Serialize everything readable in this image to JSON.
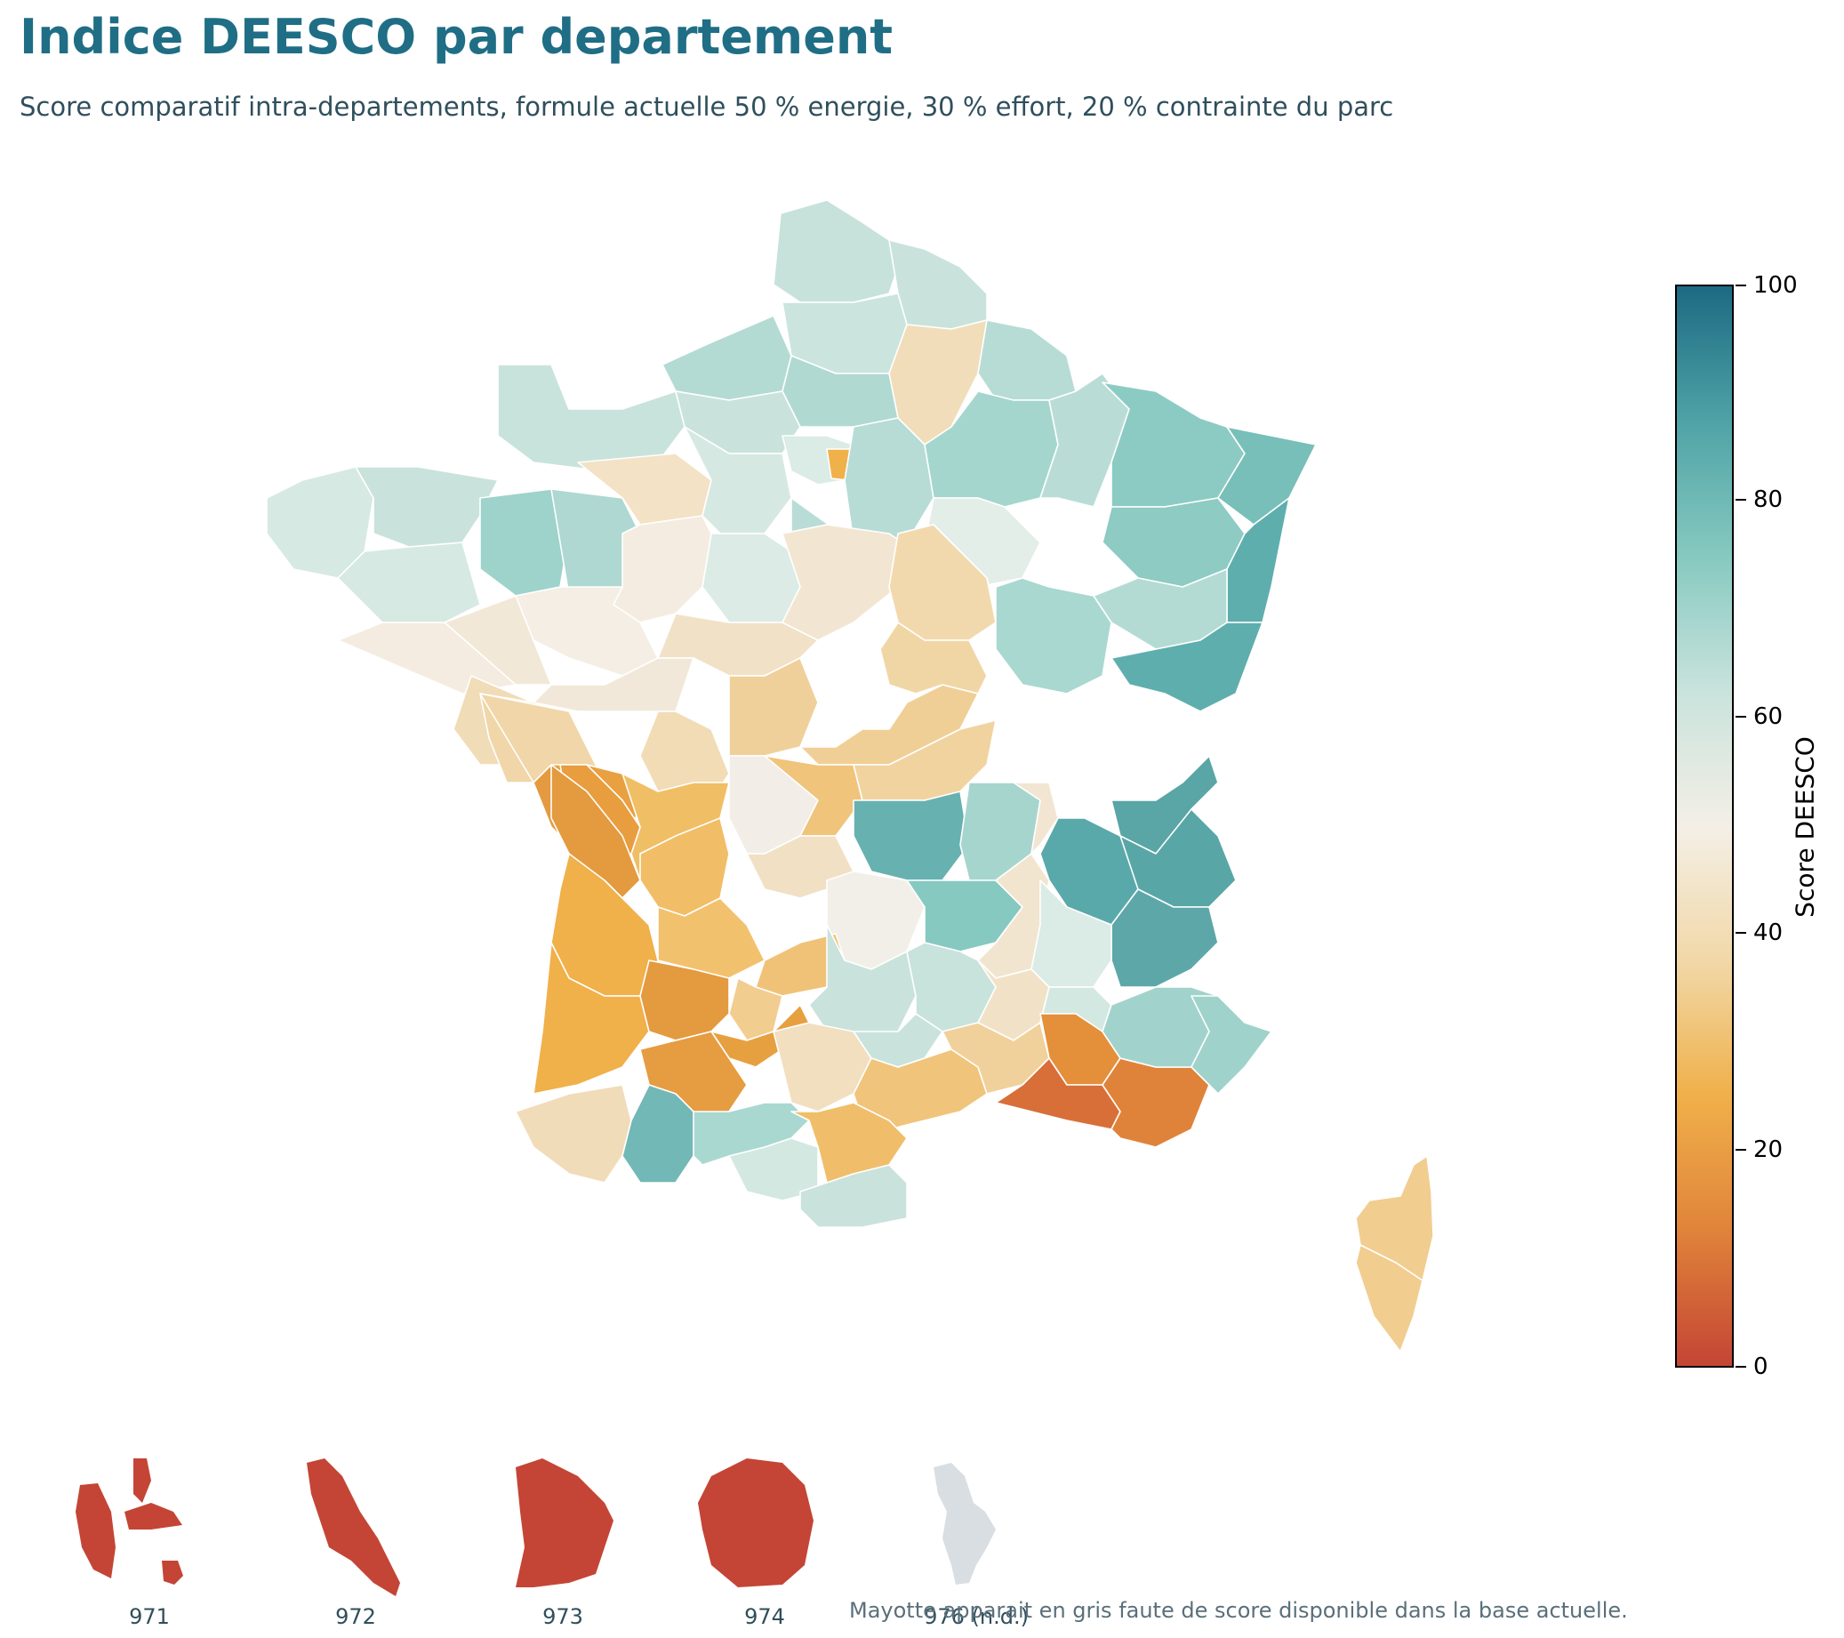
{
  "title": "Indice DEESCO par departement",
  "subtitle": "Score comparatif intra-departements, formule actuelle 50 % energie, 30 % effort, 20 % contrainte du parc",
  "legend": {
    "label": "Score DEESCO",
    "min": 0,
    "max": 100,
    "ticks": [
      "0",
      "20",
      "40",
      "60",
      "80",
      "100"
    ],
    "colors": [
      "#c44535",
      "#e0833a",
      "#f0b04a",
      "#f1d8a8",
      "#f4efe6",
      "#c9e3dc",
      "#86c9c0",
      "#4fa3a6",
      "#1c6a83"
    ]
  },
  "overseas": [
    {
      "code": "971",
      "color": "#c44535"
    },
    {
      "code": "972",
      "color": "#c44535"
    },
    {
      "code": "973",
      "color": "#c44535"
    },
    {
      "code": "974",
      "color": "#c44535"
    },
    {
      "code": "976 (n.d.)",
      "color": "#d9dee2"
    }
  ],
  "footnote": "Mayotte apparait en gris faute de score disponible dans la base actuelle."
}
